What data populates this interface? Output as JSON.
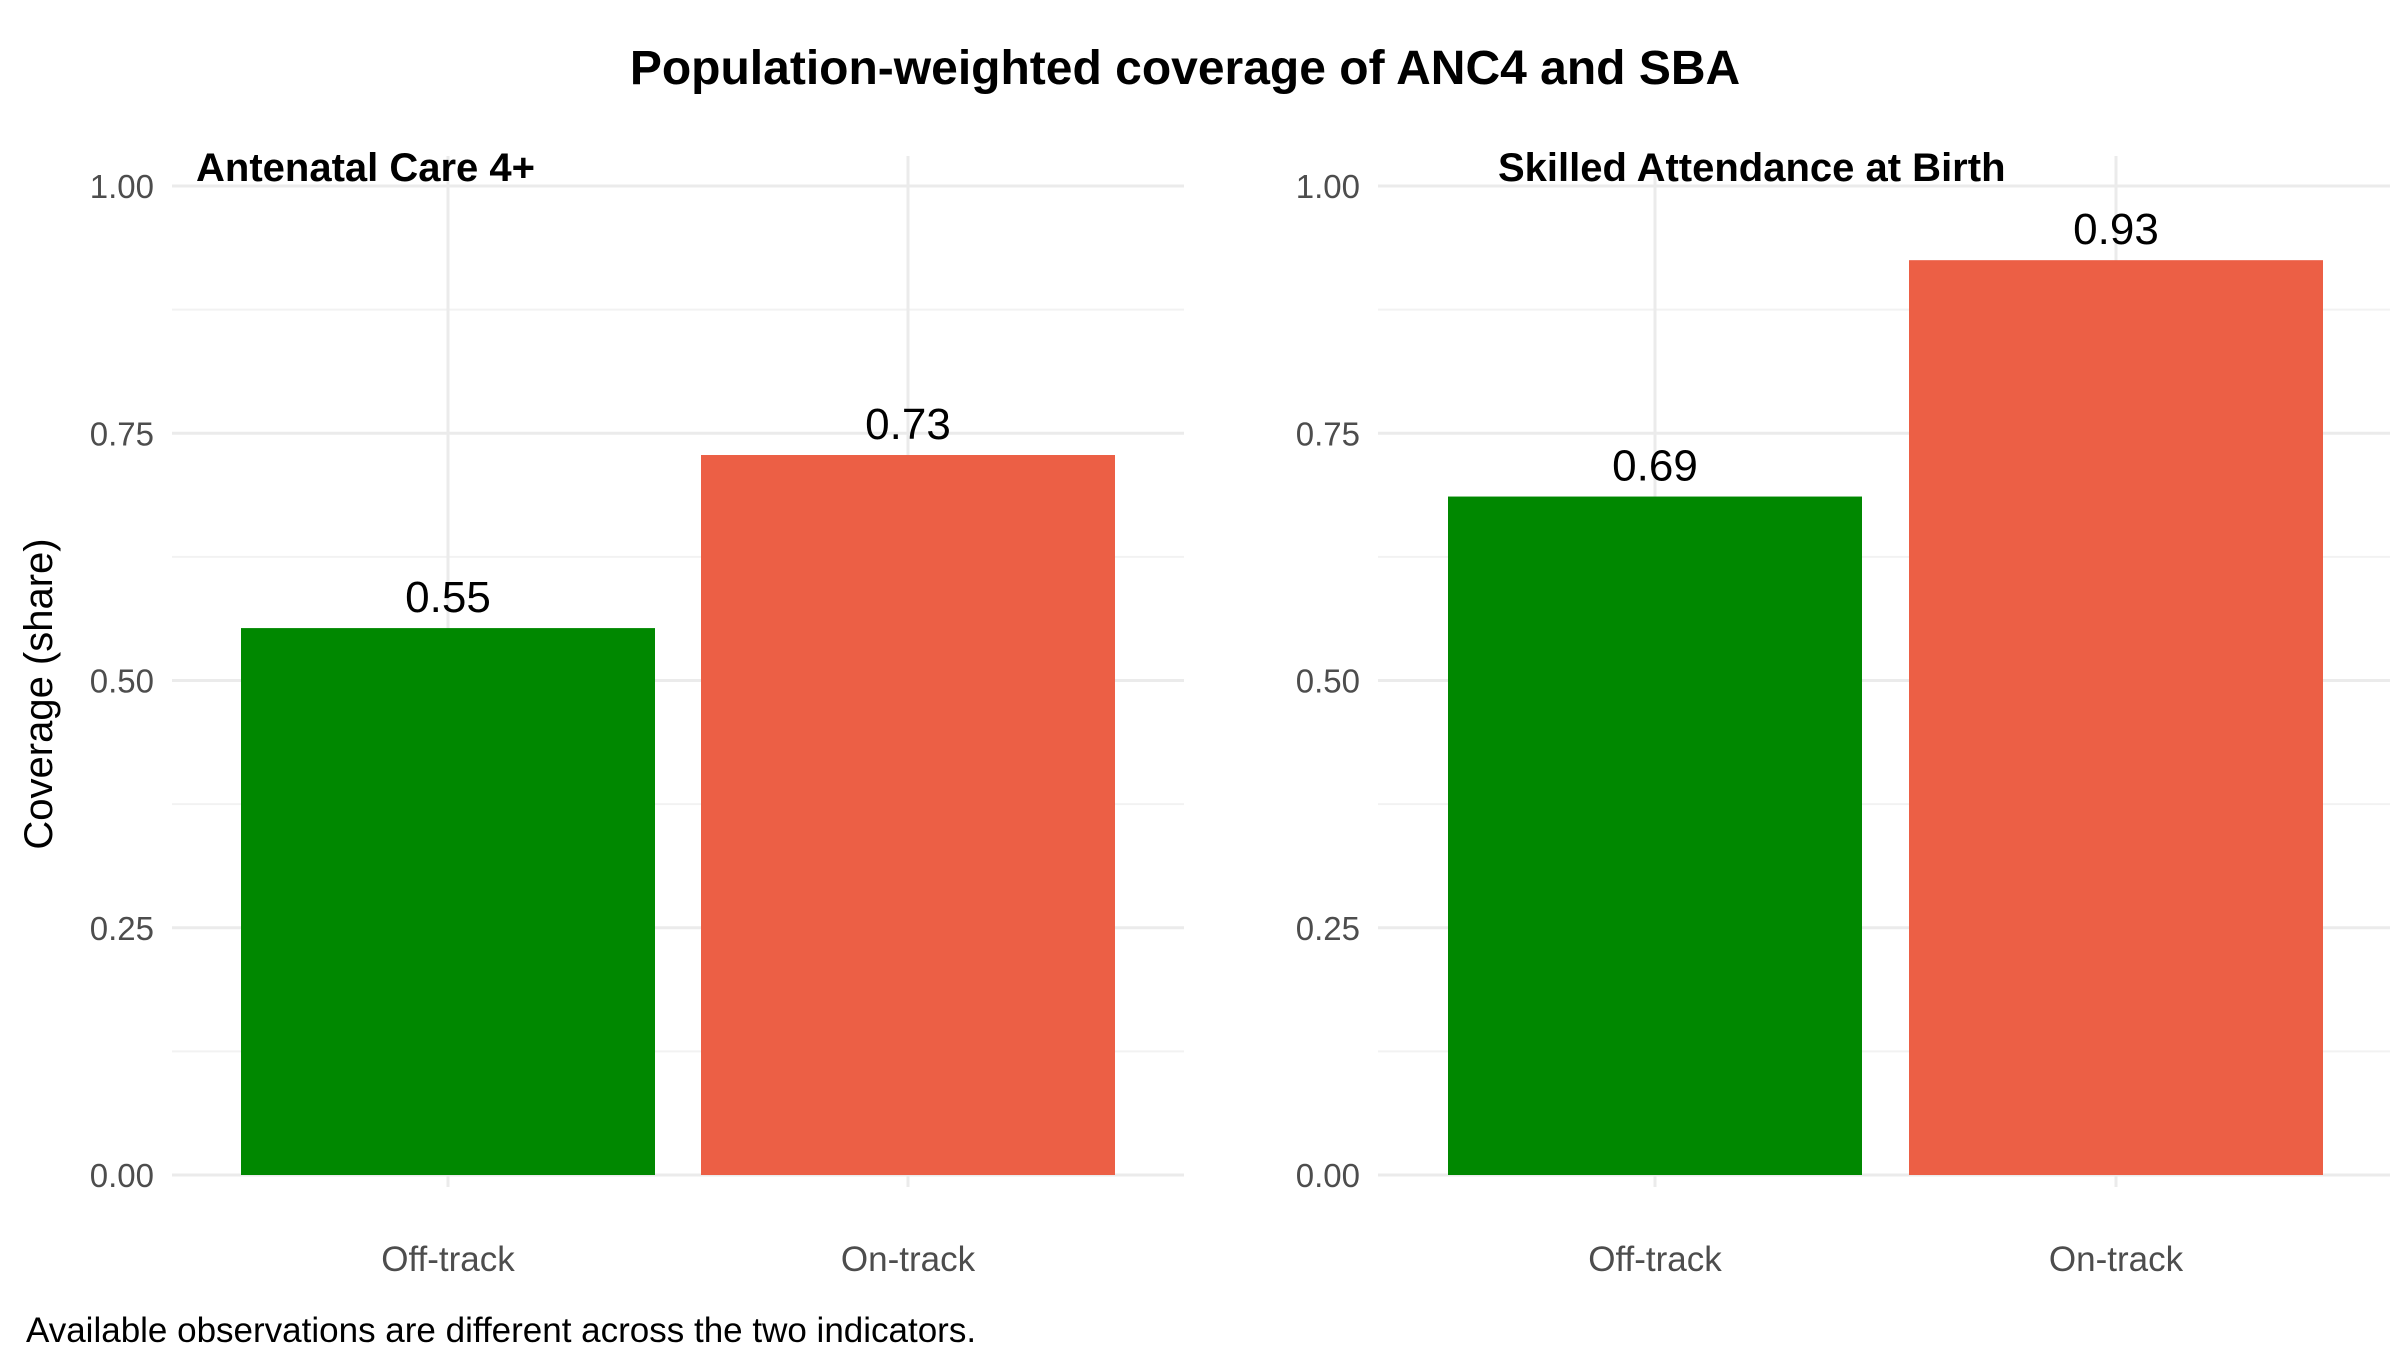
{
  "colors": {
    "off_track": "#008800",
    "on_track": "#ec5f45",
    "grid_major": "#ebebeb",
    "grid_minor": "#f2f2f2"
  },
  "chart_data": {
    "type": "bar",
    "title": "Population-weighted coverage of ANC4 and SBA",
    "ylabel": "Coverage (share)",
    "caption": "Available observations are different across the two indicators.",
    "ylim": [
      0,
      1
    ],
    "yticks": [
      "0.00",
      "0.25",
      "0.50",
      "0.75",
      "1.00"
    ],
    "grid": true,
    "legend": "none",
    "categories": [
      "Off-track",
      "On-track"
    ],
    "panels": [
      {
        "title": "Antenatal Care 4+",
        "values": [
          0.553,
          0.728
        ],
        "labels": [
          "0.55",
          "0.73"
        ]
      },
      {
        "title": "Skilled Attendance at Birth",
        "values": [
          0.686,
          0.925
        ],
        "labels": [
          "0.69",
          "0.93"
        ]
      }
    ]
  }
}
